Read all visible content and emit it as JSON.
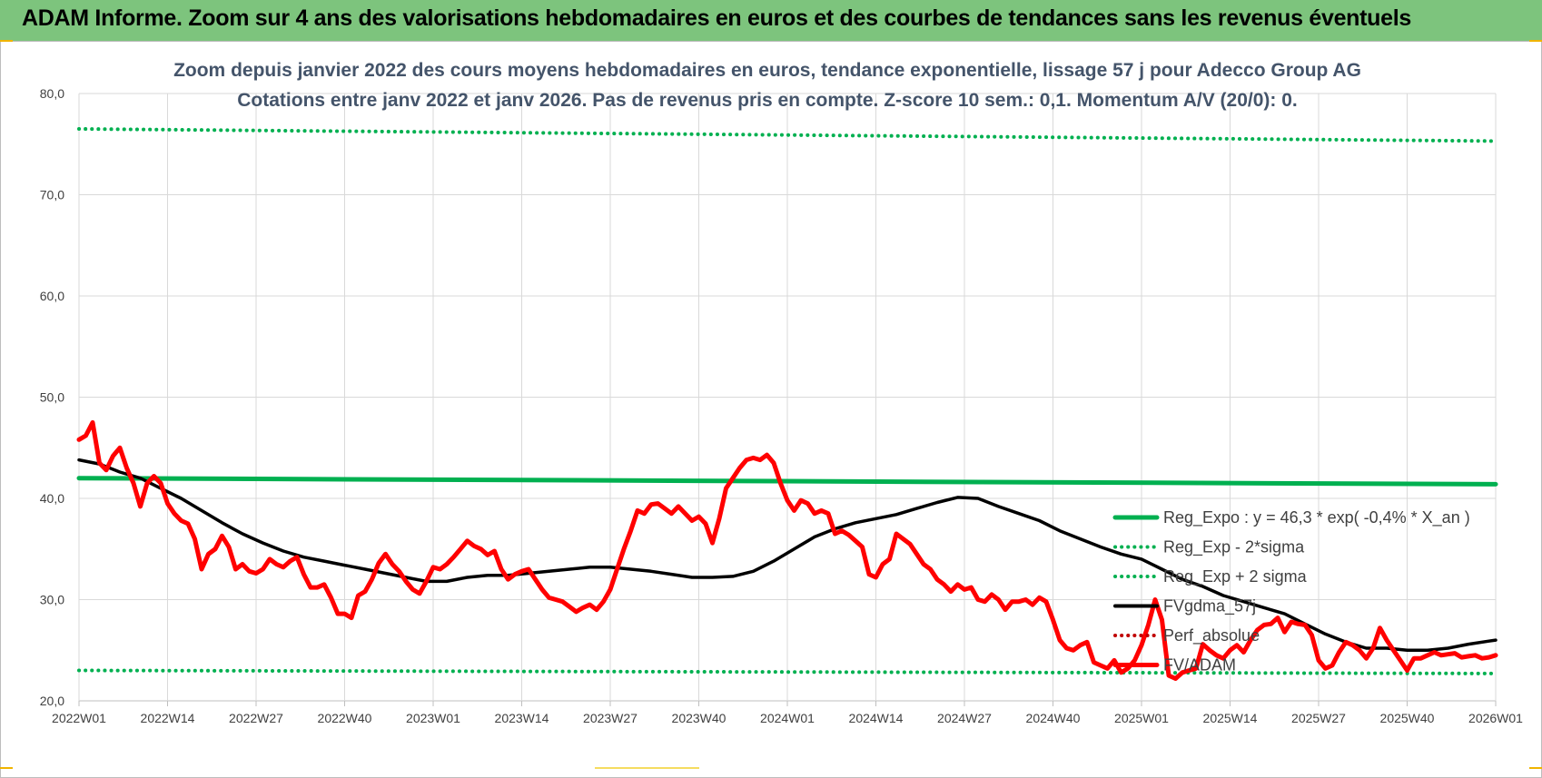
{
  "header": {
    "title": "ADAM Informe. Zoom sur 4 ans des valorisations hebdomadaires en euros et des courbes de tendances sans les revenus éventuels",
    "background": "#7dc47d"
  },
  "chart_data": {
    "type": "line",
    "title": "Zoom depuis janvier 2022 des cours moyens hebdomadaires en euros, tendance exponentielle, lissage 57 j pour Adecco Group AG",
    "subtitle": "Cotations entre janv 2022 et janv 2026. Pas de revenus pris en compte. Z-score 10 sem.: 0,1. Momentum A/V (20/0): 0.",
    "xlabel": "",
    "ylabel": "",
    "ylim": [
      20,
      80
    ],
    "yticks": [
      "20,0",
      "30,0",
      "40,0",
      "50,0",
      "60,0",
      "70,0",
      "80,0"
    ],
    "xticks": [
      "2022W01",
      "2022W14",
      "2022W27",
      "2022W40",
      "2023W01",
      "2023W14",
      "2023W27",
      "2023W40",
      "2024W01",
      "2024W14",
      "2024W27",
      "2024W40",
      "2025W01",
      "2025W14",
      "2025W27",
      "2025W40",
      "2026W01"
    ],
    "grid": true,
    "legend_position": "bottom-right",
    "x_range_weeks": [
      0,
      208
    ],
    "series": [
      {
        "name": "Reg_Expo : y = 46,3 * exp( -0,4% *  X_an )",
        "style": "solid",
        "color": "#00b050",
        "points": [
          [
            0,
            42.0
          ],
          [
            208,
            41.4
          ]
        ]
      },
      {
        "name": "Reg_Exp - 2*sigma",
        "style": "dotted",
        "color": "#00b050",
        "points": [
          [
            0,
            23.0
          ],
          [
            208,
            22.7
          ]
        ]
      },
      {
        "name": "Reg_Exp + 2 sigma",
        "style": "dotted",
        "color": "#00b050",
        "points": [
          [
            0,
            76.5
          ],
          [
            208,
            75.3
          ]
        ]
      },
      {
        "name": "FVgdma_57j",
        "style": "solid",
        "color": "#000000",
        "points": [
          [
            0,
            43.8
          ],
          [
            3,
            43.4
          ],
          [
            6,
            42.6
          ],
          [
            9,
            42.0
          ],
          [
            12,
            41.0
          ],
          [
            15,
            40.0
          ],
          [
            18,
            38.8
          ],
          [
            21,
            37.6
          ],
          [
            24,
            36.5
          ],
          [
            27,
            35.6
          ],
          [
            30,
            34.8
          ],
          [
            33,
            34.2
          ],
          [
            36,
            33.8
          ],
          [
            39,
            33.4
          ],
          [
            42,
            33.0
          ],
          [
            45,
            32.6
          ],
          [
            48,
            32.2
          ],
          [
            51,
            31.8
          ],
          [
            54,
            31.8
          ],
          [
            57,
            32.2
          ],
          [
            60,
            32.4
          ],
          [
            63,
            32.4
          ],
          [
            66,
            32.6
          ],
          [
            69,
            32.8
          ],
          [
            72,
            33.0
          ],
          [
            75,
            33.2
          ],
          [
            78,
            33.2
          ],
          [
            81,
            33.0
          ],
          [
            84,
            32.8
          ],
          [
            87,
            32.5
          ],
          [
            90,
            32.2
          ],
          [
            93,
            32.2
          ],
          [
            96,
            32.3
          ],
          [
            99,
            32.8
          ],
          [
            102,
            33.8
          ],
          [
            105,
            35.0
          ],
          [
            108,
            36.2
          ],
          [
            111,
            37.0
          ],
          [
            114,
            37.6
          ],
          [
            117,
            38.0
          ],
          [
            120,
            38.4
          ],
          [
            123,
            39.0
          ],
          [
            126,
            39.6
          ],
          [
            129,
            40.1
          ],
          [
            132,
            40.0
          ],
          [
            135,
            39.2
          ],
          [
            138,
            38.5
          ],
          [
            141,
            37.8
          ],
          [
            144,
            36.8
          ],
          [
            147,
            36.0
          ],
          [
            150,
            35.2
          ],
          [
            153,
            34.5
          ],
          [
            156,
            34.0
          ],
          [
            159,
            33.0
          ],
          [
            162,
            32.0
          ],
          [
            165,
            31.3
          ],
          [
            168,
            30.4
          ],
          [
            171,
            29.8
          ],
          [
            174,
            29.2
          ],
          [
            177,
            28.6
          ],
          [
            180,
            27.6
          ],
          [
            183,
            26.6
          ],
          [
            186,
            25.8
          ],
          [
            189,
            25.2
          ],
          [
            192,
            25.2
          ],
          [
            195,
            25.0
          ],
          [
            198,
            25.0
          ],
          [
            201,
            25.2
          ],
          [
            204,
            25.6
          ],
          [
            207,
            25.9
          ],
          [
            208,
            26.0
          ]
        ]
      },
      {
        "name": "Perf_absolue",
        "style": "dotted",
        "color": "#c00000",
        "points": []
      },
      {
        "name": "FV/ADAM",
        "style": "solid",
        "color": "#ff0000",
        "points": [
          [
            0,
            45.8
          ],
          [
            1,
            46.2
          ],
          [
            2,
            47.5
          ],
          [
            3,
            43.5
          ],
          [
            4,
            42.8
          ],
          [
            5,
            44.2
          ],
          [
            6,
            45.0
          ],
          [
            7,
            43.0
          ],
          [
            8,
            41.5
          ],
          [
            9,
            39.2
          ],
          [
            10,
            41.5
          ],
          [
            11,
            42.2
          ],
          [
            12,
            41.5
          ],
          [
            13,
            39.5
          ],
          [
            14,
            38.5
          ],
          [
            15,
            37.8
          ],
          [
            16,
            37.5
          ],
          [
            17,
            36.0
          ],
          [
            18,
            33.0
          ],
          [
            19,
            34.5
          ],
          [
            20,
            35.0
          ],
          [
            21,
            36.3
          ],
          [
            22,
            35.2
          ],
          [
            23,
            33.0
          ],
          [
            24,
            33.5
          ],
          [
            25,
            32.8
          ],
          [
            26,
            32.6
          ],
          [
            27,
            33.0
          ],
          [
            28,
            34.0
          ],
          [
            29,
            33.5
          ],
          [
            30,
            33.2
          ],
          [
            31,
            33.8
          ],
          [
            32,
            34.2
          ],
          [
            33,
            32.5
          ],
          [
            34,
            31.2
          ],
          [
            35,
            31.2
          ],
          [
            36,
            31.5
          ],
          [
            37,
            30.2
          ],
          [
            38,
            28.6
          ],
          [
            39,
            28.6
          ],
          [
            40,
            28.2
          ],
          [
            41,
            30.4
          ],
          [
            42,
            30.8
          ],
          [
            43,
            32.0
          ],
          [
            44,
            33.6
          ],
          [
            45,
            34.5
          ],
          [
            46,
            33.5
          ],
          [
            47,
            32.8
          ],
          [
            48,
            31.8
          ],
          [
            49,
            31.0
          ],
          [
            50,
            30.6
          ],
          [
            51,
            31.8
          ],
          [
            52,
            33.2
          ],
          [
            53,
            33.0
          ],
          [
            54,
            33.5
          ],
          [
            55,
            34.2
          ],
          [
            56,
            35.0
          ],
          [
            57,
            35.8
          ],
          [
            58,
            35.3
          ],
          [
            59,
            35.0
          ],
          [
            60,
            34.4
          ],
          [
            61,
            34.8
          ],
          [
            62,
            33.0
          ],
          [
            63,
            32.0
          ],
          [
            64,
            32.5
          ],
          [
            65,
            32.8
          ],
          [
            66,
            33.0
          ],
          [
            67,
            32.0
          ],
          [
            68,
            31.0
          ],
          [
            69,
            30.2
          ],
          [
            70,
            30.0
          ],
          [
            71,
            29.8
          ],
          [
            72,
            29.3
          ],
          [
            73,
            28.8
          ],
          [
            74,
            29.2
          ],
          [
            75,
            29.5
          ],
          [
            76,
            29.0
          ],
          [
            77,
            29.8
          ],
          [
            78,
            31.0
          ],
          [
            79,
            33.0
          ],
          [
            80,
            35.0
          ],
          [
            81,
            36.8
          ],
          [
            82,
            38.8
          ],
          [
            83,
            38.5
          ],
          [
            84,
            39.4
          ],
          [
            85,
            39.5
          ],
          [
            86,
            39.0
          ],
          [
            87,
            38.5
          ],
          [
            88,
            39.2
          ],
          [
            89,
            38.5
          ],
          [
            90,
            37.8
          ],
          [
            91,
            38.2
          ],
          [
            92,
            37.5
          ],
          [
            93,
            35.6
          ],
          [
            94,
            38.0
          ],
          [
            95,
            41.0
          ],
          [
            96,
            42.0
          ],
          [
            97,
            43.0
          ],
          [
            98,
            43.8
          ],
          [
            99,
            44.0
          ],
          [
            100,
            43.8
          ],
          [
            101,
            44.3
          ],
          [
            102,
            43.5
          ],
          [
            103,
            41.5
          ],
          [
            104,
            39.8
          ],
          [
            105,
            38.8
          ],
          [
            106,
            39.8
          ],
          [
            107,
            39.5
          ],
          [
            108,
            38.5
          ],
          [
            109,
            38.8
          ],
          [
            110,
            38.5
          ],
          [
            111,
            36.5
          ],
          [
            112,
            36.8
          ],
          [
            113,
            36.4
          ],
          [
            114,
            35.8
          ],
          [
            115,
            35.2
          ],
          [
            116,
            32.5
          ],
          [
            117,
            32.2
          ],
          [
            118,
            33.5
          ],
          [
            119,
            34.0
          ],
          [
            120,
            36.5
          ],
          [
            121,
            36.0
          ],
          [
            122,
            35.5
          ],
          [
            123,
            34.5
          ],
          [
            124,
            33.5
          ],
          [
            125,
            33.0
          ],
          [
            126,
            32.0
          ],
          [
            127,
            31.5
          ],
          [
            128,
            30.8
          ],
          [
            129,
            31.5
          ],
          [
            130,
            31.0
          ],
          [
            131,
            31.2
          ],
          [
            132,
            30.0
          ],
          [
            133,
            29.8
          ],
          [
            134,
            30.5
          ],
          [
            135,
            30.0
          ],
          [
            136,
            29.0
          ],
          [
            137,
            29.8
          ],
          [
            138,
            29.8
          ],
          [
            139,
            30.0
          ],
          [
            140,
            29.5
          ],
          [
            141,
            30.2
          ],
          [
            142,
            29.8
          ],
          [
            143,
            28.0
          ],
          [
            144,
            26.0
          ],
          [
            145,
            25.2
          ],
          [
            146,
            25.0
          ],
          [
            147,
            25.5
          ],
          [
            148,
            25.8
          ],
          [
            149,
            23.8
          ],
          [
            150,
            23.5
          ],
          [
            151,
            23.2
          ],
          [
            152,
            24.0
          ],
          [
            153,
            22.8
          ],
          [
            154,
            23.2
          ],
          [
            155,
            24.0
          ],
          [
            156,
            25.5
          ],
          [
            157,
            27.5
          ],
          [
            158,
            30.0
          ],
          [
            159,
            28.0
          ],
          [
            160,
            22.5
          ],
          [
            161,
            22.2
          ],
          [
            162,
            22.8
          ],
          [
            163,
            23.0
          ],
          [
            164,
            23.2
          ],
          [
            165,
            25.6
          ],
          [
            166,
            25.0
          ],
          [
            167,
            24.5
          ],
          [
            168,
            24.2
          ],
          [
            169,
            25.0
          ],
          [
            170,
            25.5
          ],
          [
            171,
            24.8
          ],
          [
            172,
            26.0
          ],
          [
            173,
            27.0
          ],
          [
            174,
            27.5
          ],
          [
            175,
            27.6
          ],
          [
            176,
            28.2
          ],
          [
            177,
            26.8
          ],
          [
            178,
            27.8
          ],
          [
            179,
            27.6
          ],
          [
            180,
            27.5
          ],
          [
            181,
            26.5
          ],
          [
            182,
            24.0
          ],
          [
            183,
            23.2
          ],
          [
            184,
            23.5
          ],
          [
            185,
            24.8
          ],
          [
            186,
            25.8
          ],
          [
            187,
            25.5
          ],
          [
            188,
            25.0
          ],
          [
            189,
            24.2
          ],
          [
            190,
            25.2
          ],
          [
            191,
            27.2
          ],
          [
            192,
            26.0
          ],
          [
            193,
            25.0
          ],
          [
            194,
            24.0
          ],
          [
            195,
            23.0
          ],
          [
            196,
            24.2
          ],
          [
            197,
            24.2
          ],
          [
            198,
            24.5
          ],
          [
            199,
            24.8
          ],
          [
            200,
            24.5
          ],
          [
            201,
            24.6
          ],
          [
            202,
            24.7
          ],
          [
            203,
            24.3
          ],
          [
            204,
            24.4
          ],
          [
            205,
            24.5
          ],
          [
            206,
            24.2
          ],
          [
            207,
            24.3
          ],
          [
            208,
            24.5
          ]
        ]
      }
    ]
  }
}
